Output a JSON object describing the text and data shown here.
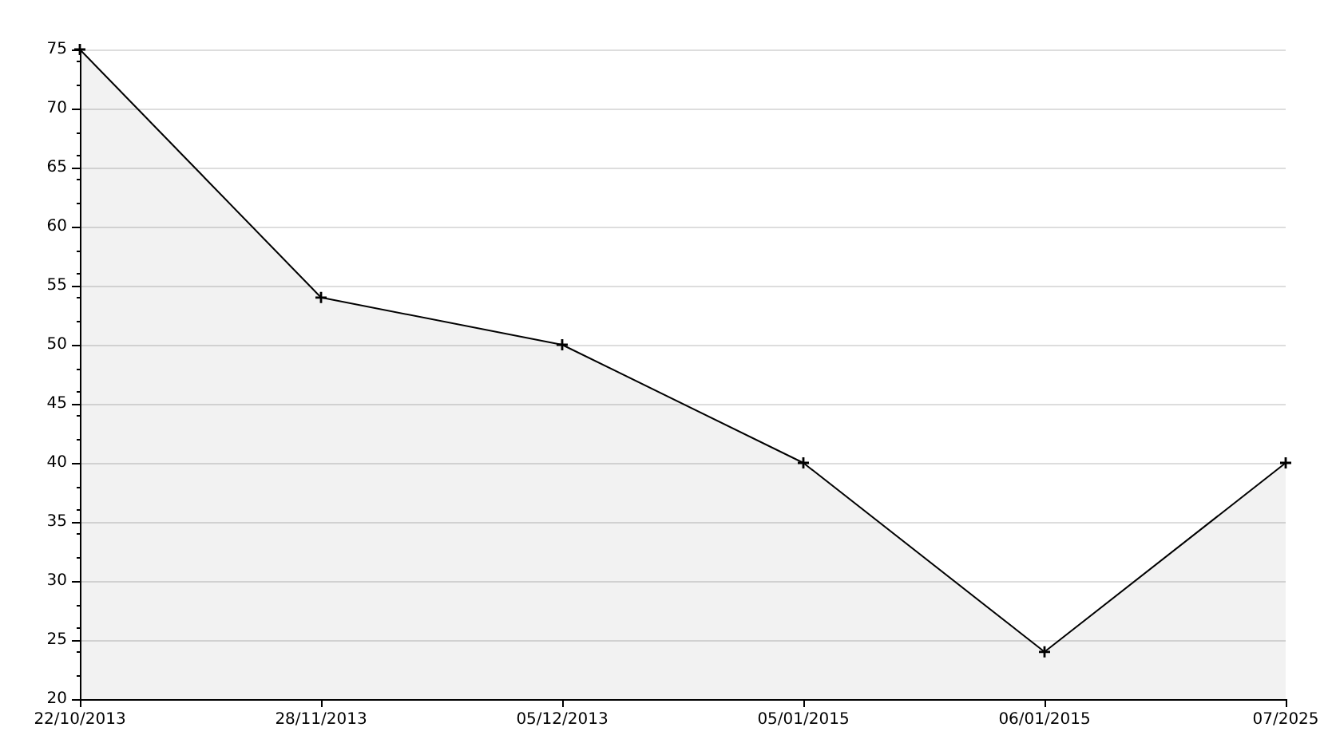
{
  "chart_data": {
    "type": "area",
    "categories": [
      "22/10/2013",
      "28/11/2013",
      "05/12/2013",
      "05/01/2015",
      "06/01/2015",
      "07/2025"
    ],
    "series": [
      {
        "color": "#000000",
        "values": [
          75,
          54,
          50,
          40,
          24,
          40
        ]
      }
    ],
    "ylim": [
      20,
      75
    ],
    "yticks": [
      20,
      25,
      30,
      35,
      40,
      45,
      50,
      55,
      60,
      65,
      70,
      75
    ],
    "grid": "y",
    "marker": "cross",
    "line_style": "solid"
  }
}
